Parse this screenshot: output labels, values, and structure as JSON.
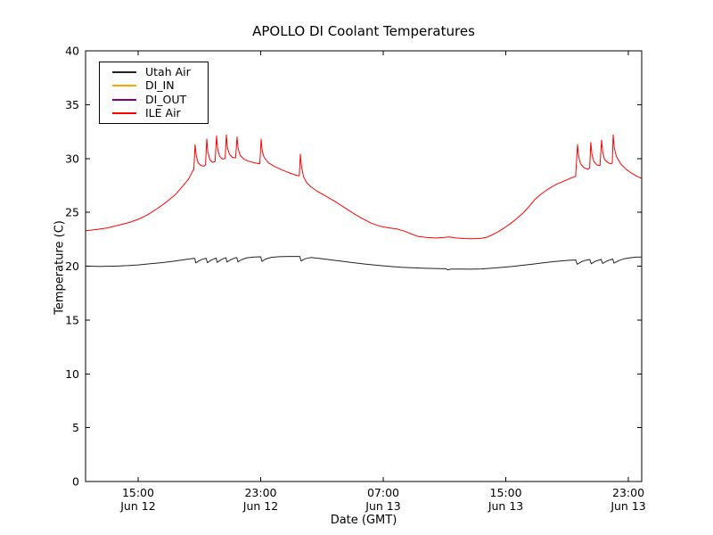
{
  "figure": {
    "background": "#ffffff",
    "frame_color": "#000000",
    "text_color": "#000000"
  },
  "chart_data": {
    "type": "line",
    "title": "APOLLO DI Coolant Temperatures",
    "xlabel": "Date (GMT)",
    "ylabel": "Temperature (C)",
    "grid": false,
    "legend_position": "upper left",
    "x_unit": "hours since Jun 12 00:00 GMT",
    "xlim": [
      11.57,
      47.87
    ],
    "ylim": [
      0,
      40
    ],
    "yticks": [
      0,
      5,
      10,
      15,
      20,
      25,
      30,
      35,
      40
    ],
    "xticks": [
      {
        "value": 15,
        "line1": "15:00",
        "line2": "Jun 12"
      },
      {
        "value": 23,
        "line1": "23:00",
        "line2": "Jun 12"
      },
      {
        "value": 31,
        "line1": "07:00",
        "line2": "Jun 13"
      },
      {
        "value": 39,
        "line1": "15:00",
        "line2": "Jun 13"
      },
      {
        "value": 47,
        "line1": "23:00",
        "line2": "Jun 13"
      }
    ],
    "series": [
      {
        "name": "Utah Air",
        "color": "#222222",
        "points": [
          [
            11.57,
            20.0
          ],
          [
            12.5,
            19.98
          ],
          [
            13.5,
            20.0
          ],
          [
            14.3,
            20.05
          ],
          [
            15.0,
            20.12
          ],
          [
            15.8,
            20.22
          ],
          [
            16.6,
            20.33
          ],
          [
            17.4,
            20.48
          ],
          [
            18.1,
            20.62
          ],
          [
            18.64,
            20.73
          ],
          [
            18.7,
            20.73
          ],
          [
            18.76,
            20.3
          ],
          [
            18.95,
            20.48
          ],
          [
            19.2,
            20.65
          ],
          [
            19.44,
            20.74
          ],
          [
            19.52,
            20.32
          ],
          [
            19.72,
            20.52
          ],
          [
            19.95,
            20.68
          ],
          [
            20.1,
            20.75
          ],
          [
            20.16,
            20.35
          ],
          [
            20.38,
            20.56
          ],
          [
            20.6,
            20.72
          ],
          [
            20.74,
            20.78
          ],
          [
            20.8,
            20.38
          ],
          [
            21.02,
            20.58
          ],
          [
            21.3,
            20.75
          ],
          [
            21.44,
            20.8
          ],
          [
            21.52,
            20.4
          ],
          [
            21.78,
            20.62
          ],
          [
            22.1,
            20.78
          ],
          [
            22.6,
            20.85
          ],
          [
            23.0,
            20.87
          ],
          [
            23.08,
            20.45
          ],
          [
            23.32,
            20.66
          ],
          [
            23.7,
            20.82
          ],
          [
            24.2,
            20.88
          ],
          [
            24.8,
            20.9
          ],
          [
            25.3,
            20.9
          ],
          [
            25.55,
            20.9
          ],
          [
            25.64,
            20.48
          ],
          [
            25.88,
            20.68
          ],
          [
            26.25,
            20.8
          ],
          [
            26.8,
            20.73
          ],
          [
            27.5,
            20.6
          ],
          [
            28.2,
            20.48
          ],
          [
            29.0,
            20.33
          ],
          [
            29.8,
            20.2
          ],
          [
            30.6,
            20.08
          ],
          [
            31.4,
            19.98
          ],
          [
            32.2,
            19.9
          ],
          [
            33.0,
            19.84
          ],
          [
            33.8,
            19.8
          ],
          [
            34.6,
            19.77
          ],
          [
            35.1,
            19.76
          ],
          [
            35.2,
            19.66
          ],
          [
            35.45,
            19.73
          ],
          [
            36.0,
            19.73
          ],
          [
            36.7,
            19.72
          ],
          [
            37.4,
            19.74
          ],
          [
            38.0,
            19.8
          ],
          [
            38.7,
            19.88
          ],
          [
            39.4,
            19.97
          ],
          [
            40.1,
            20.08
          ],
          [
            40.8,
            20.2
          ],
          [
            41.5,
            20.32
          ],
          [
            42.2,
            20.43
          ],
          [
            42.9,
            20.52
          ],
          [
            43.56,
            20.58
          ],
          [
            43.66,
            20.18
          ],
          [
            43.95,
            20.42
          ],
          [
            44.25,
            20.56
          ],
          [
            44.48,
            20.62
          ],
          [
            44.58,
            20.22
          ],
          [
            44.85,
            20.46
          ],
          [
            45.12,
            20.58
          ],
          [
            45.22,
            20.63
          ],
          [
            45.32,
            20.25
          ],
          [
            45.6,
            20.48
          ],
          [
            45.88,
            20.62
          ],
          [
            45.98,
            20.66
          ],
          [
            46.06,
            20.28
          ],
          [
            46.38,
            20.52
          ],
          [
            46.7,
            20.68
          ],
          [
            47.1,
            20.78
          ],
          [
            47.5,
            20.84
          ],
          [
            47.87,
            20.85
          ]
        ]
      },
      {
        "name": "DI_IN",
        "color": "#ffa500",
        "points": []
      },
      {
        "name": "DI_OUT",
        "color": "#800080",
        "points": []
      },
      {
        "name": "ILE Air",
        "color": "#ff0000",
        "points": [
          [
            11.57,
            23.3
          ],
          [
            12.3,
            23.4
          ],
          [
            13.0,
            23.55
          ],
          [
            13.7,
            23.8
          ],
          [
            14.4,
            24.05
          ],
          [
            15.0,
            24.35
          ],
          [
            15.6,
            24.75
          ],
          [
            16.2,
            25.3
          ],
          [
            16.8,
            25.9
          ],
          [
            17.4,
            26.6
          ],
          [
            17.9,
            27.4
          ],
          [
            18.3,
            28.1
          ],
          [
            18.55,
            28.8
          ],
          [
            18.64,
            29.0
          ],
          [
            18.72,
            31.3
          ],
          [
            18.79,
            30.3
          ],
          [
            18.92,
            29.6
          ],
          [
            19.1,
            29.35
          ],
          [
            19.3,
            29.3
          ],
          [
            19.4,
            29.4
          ],
          [
            19.48,
            31.8
          ],
          [
            19.55,
            30.6
          ],
          [
            19.68,
            29.9
          ],
          [
            19.85,
            29.65
          ],
          [
            20.02,
            29.7
          ],
          [
            20.12,
            32.1
          ],
          [
            20.19,
            30.9
          ],
          [
            20.32,
            30.2
          ],
          [
            20.5,
            29.95
          ],
          [
            20.68,
            30.0
          ],
          [
            20.76,
            32.2
          ],
          [
            20.83,
            31.0
          ],
          [
            20.96,
            30.4
          ],
          [
            21.15,
            30.1
          ],
          [
            21.36,
            30.05
          ],
          [
            21.46,
            32.0
          ],
          [
            21.53,
            30.9
          ],
          [
            21.66,
            30.3
          ],
          [
            21.9,
            29.95
          ],
          [
            22.2,
            29.75
          ],
          [
            22.6,
            29.6
          ],
          [
            22.94,
            29.5
          ],
          [
            23.03,
            31.8
          ],
          [
            23.1,
            30.7
          ],
          [
            23.23,
            30.1
          ],
          [
            23.5,
            29.6
          ],
          [
            23.85,
            29.3
          ],
          [
            24.3,
            29.0
          ],
          [
            24.8,
            28.7
          ],
          [
            25.3,
            28.45
          ],
          [
            25.52,
            28.4
          ],
          [
            25.59,
            30.4
          ],
          [
            25.66,
            29.3
          ],
          [
            25.8,
            28.3
          ],
          [
            25.98,
            27.8
          ],
          [
            26.25,
            27.4
          ],
          [
            26.7,
            26.95
          ],
          [
            27.2,
            26.55
          ],
          [
            27.8,
            26.05
          ],
          [
            28.4,
            25.5
          ],
          [
            29.0,
            24.95
          ],
          [
            29.6,
            24.45
          ],
          [
            30.2,
            24.0
          ],
          [
            30.8,
            23.7
          ],
          [
            31.4,
            23.55
          ],
          [
            31.9,
            23.45
          ],
          [
            32.4,
            23.25
          ],
          [
            32.9,
            22.95
          ],
          [
            33.3,
            22.75
          ],
          [
            33.8,
            22.67
          ],
          [
            34.4,
            22.62
          ],
          [
            34.9,
            22.66
          ],
          [
            35.3,
            22.72
          ],
          [
            35.7,
            22.63
          ],
          [
            36.2,
            22.57
          ],
          [
            36.8,
            22.55
          ],
          [
            37.3,
            22.57
          ],
          [
            37.7,
            22.66
          ],
          [
            38.1,
            22.9
          ],
          [
            38.5,
            23.2
          ],
          [
            38.9,
            23.55
          ],
          [
            39.3,
            23.95
          ],
          [
            39.7,
            24.4
          ],
          [
            40.1,
            24.9
          ],
          [
            40.5,
            25.5
          ],
          [
            40.9,
            26.2
          ],
          [
            41.3,
            26.7
          ],
          [
            41.8,
            27.2
          ],
          [
            42.3,
            27.6
          ],
          [
            42.8,
            27.9
          ],
          [
            43.2,
            28.15
          ],
          [
            43.56,
            28.35
          ],
          [
            43.68,
            31.3
          ],
          [
            43.75,
            30.2
          ],
          [
            43.88,
            29.5
          ],
          [
            44.1,
            29.15
          ],
          [
            44.35,
            29.0
          ],
          [
            44.47,
            29.1
          ],
          [
            44.55,
            31.5
          ],
          [
            44.62,
            30.4
          ],
          [
            44.75,
            29.7
          ],
          [
            44.95,
            29.4
          ],
          [
            45.15,
            29.35
          ],
          [
            45.25,
            31.7
          ],
          [
            45.32,
            30.6
          ],
          [
            45.45,
            29.9
          ],
          [
            45.68,
            29.6
          ],
          [
            45.88,
            29.5
          ],
          [
            45.95,
            29.6
          ],
          [
            46.01,
            32.2
          ],
          [
            46.08,
            31.0
          ],
          [
            46.21,
            30.2
          ],
          [
            46.5,
            29.5
          ],
          [
            46.85,
            29.0
          ],
          [
            47.2,
            28.65
          ],
          [
            47.55,
            28.35
          ],
          [
            47.87,
            28.15
          ]
        ]
      }
    ]
  }
}
